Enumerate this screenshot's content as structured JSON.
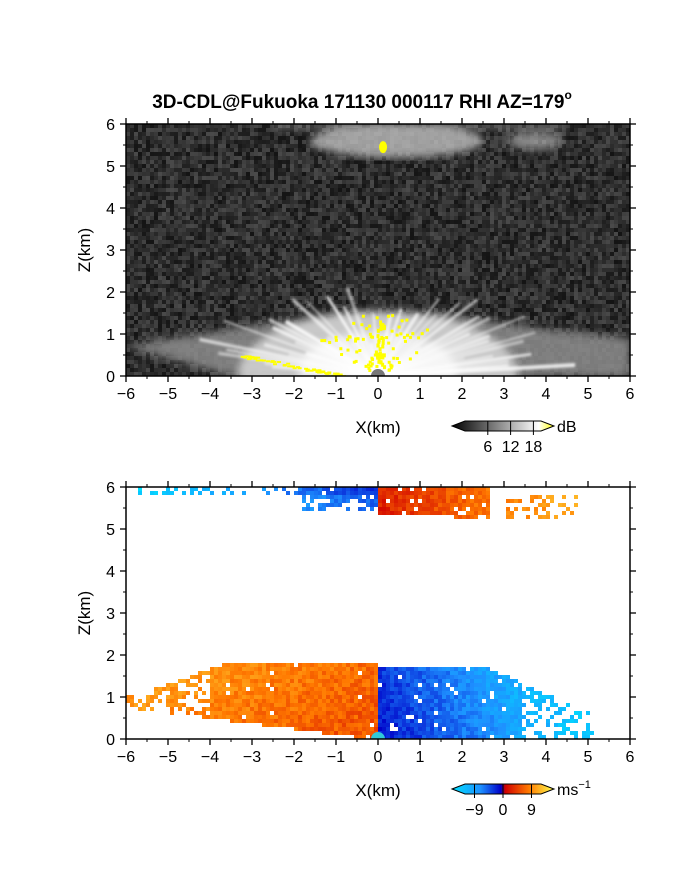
{
  "title": "3D-CDL@Fukuoka 171130 000117 RHI AZ=179",
  "title_degree": "o",
  "chart_data": [
    {
      "type": "heatmap",
      "panel": "reflectivity",
      "xlabel": "X(km)",
      "ylabel": "Z(km)",
      "xlim": [
        -6,
        6
      ],
      "ylim": [
        0,
        6
      ],
      "xticks": [
        "-6",
        "-5",
        "-4",
        "-3",
        "-2",
        "-1",
        "0",
        "1",
        "2",
        "3",
        "4",
        "5",
        "6"
      ],
      "yticks": [
        "0",
        "1",
        "2",
        "3",
        "4",
        "5",
        "6"
      ],
      "colorbar": {
        "unit": "dB",
        "ticks": [
          6,
          12,
          18
        ],
        "range": [
          0,
          20
        ],
        "colormap": "grayscale"
      },
      "features": [
        {
          "name": "boundary-layer fan echo",
          "x_range": [
            -6,
            6
          ],
          "z_range": [
            0,
            1.5
          ],
          "intensity": "medium-high"
        },
        {
          "name": "upper cloud layer",
          "x_range": [
            -2.5,
            4.5
          ],
          "z_range": [
            5.2,
            6.0
          ],
          "intensity": "medium"
        },
        {
          "name": "saturated near-radar echo",
          "x_range": [
            -0.8,
            1.0
          ],
          "z_range": [
            0.3,
            1.3
          ],
          "intensity": "very high"
        },
        {
          "name": "saturated surface echo",
          "x_range": [
            -3.3,
            -0.8
          ],
          "z_range": [
            0.0,
            0.5
          ],
          "intensity": "very high"
        },
        {
          "name": "saturated cloud-base spot",
          "x_range": [
            0.0,
            0.2
          ],
          "z_range": [
            5.3,
            5.6
          ],
          "intensity": "very high"
        }
      ],
      "background": "noise"
    },
    {
      "type": "heatmap",
      "panel": "doppler velocity",
      "xlabel": "X(km)",
      "ylabel": "Z(km)",
      "xlim": [
        -6,
        6
      ],
      "ylim": [
        0,
        6
      ],
      "xticks": [
        "-6",
        "-5",
        "-4",
        "-3",
        "-2",
        "-1",
        "0",
        "1",
        "2",
        "3",
        "4",
        "5",
        "6"
      ],
      "yticks": [
        "0",
        "1",
        "2",
        "3",
        "4",
        "5",
        "6"
      ],
      "colorbar": {
        "unit": "ms",
        "unit_exponent": "−1",
        "ticks": [
          "−9",
          "0",
          "9"
        ],
        "range": [
          -12,
          12
        ],
        "colormap": "blue-red-yellow"
      },
      "features": [
        {
          "name": "lower layer, left of radar",
          "x_range": [
            -6,
            0
          ],
          "z_range": [
            0,
            1.8
          ],
          "velocity_range": [
            0.5,
            9
          ]
        },
        {
          "name": "lower layer, right of radar",
          "x_range": [
            0,
            5
          ],
          "z_range": [
            0,
            1.7
          ],
          "velocity_range": [
            -12,
            -0.5
          ]
        },
        {
          "name": "upper layer, left of radar",
          "x_range": [
            -6,
            0
          ],
          "z_range": [
            5.7,
            6.0
          ],
          "velocity_range": [
            -12,
            -2
          ]
        },
        {
          "name": "upper layer, right of radar",
          "x_range": [
            0,
            4.8
          ],
          "z_range": [
            5.2,
            6.0
          ],
          "velocity_range": [
            1.5,
            8
          ]
        }
      ]
    }
  ],
  "colors": {
    "saturation": "#ffff00",
    "axis": "#000000",
    "background": "#ffffff"
  }
}
